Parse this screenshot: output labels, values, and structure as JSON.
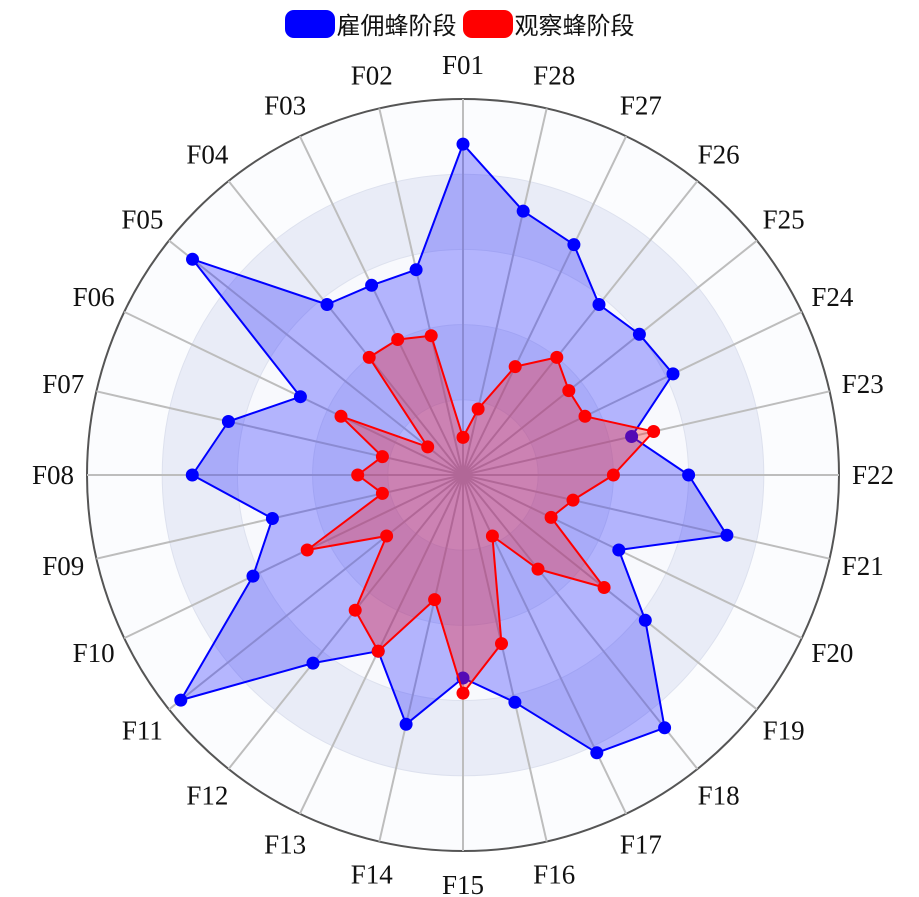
{
  "chart_data": {
    "type": "radar",
    "title": "",
    "legend": {
      "position": "top-center"
    },
    "categories": [
      "F01",
      "F28",
      "F27",
      "F26",
      "F25",
      "F24",
      "F23",
      "F22",
      "F21",
      "F20",
      "F19",
      "F18",
      "F17",
      "F16",
      "F15",
      "F14",
      "F13",
      "F12",
      "F11",
      "F10",
      "F09",
      "F08",
      "F07",
      "F06",
      "F05",
      "F04",
      "F03",
      "F02"
    ],
    "category_order": "clockwise from top",
    "rlim": [
      0,
      5
    ],
    "grid_rings": [
      1,
      2,
      3,
      4,
      5
    ],
    "grid": true,
    "series": [
      {
        "name": "雇佣蜂阶段",
        "color": "#0000ff",
        "fill": "rgba(40,40,255,0.33)",
        "values": {
          "F01": 4.4,
          "F28": 3.6,
          "F27": 3.4,
          "F26": 2.9,
          "F25": 3.0,
          "F24": 3.1,
          "F23": 2.3,
          "F22": 3.0,
          "F21": 3.6,
          "F20": 2.3,
          "F19": 3.1,
          "F18": 4.3,
          "F17": 4.1,
          "F16": 3.1,
          "F15": 2.7,
          "F14": 3.4,
          "F13": 2.6,
          "F12": 3.2,
          "F11": 4.8,
          "F10": 3.1,
          "F09": 2.6,
          "F08": 3.6,
          "F07": 3.2,
          "F06": 2.4,
          "F05": 4.6,
          "F04": 2.9,
          "F03": 2.8,
          "F02": 2.8
        }
      },
      {
        "name": "观察蜂阶段",
        "color": "#ff0000",
        "fill": "rgba(255,30,30,0.33)",
        "values": {
          "F01": 0.5,
          "F28": 0.9,
          "F27": 1.6,
          "F26": 2.0,
          "F25": 1.8,
          "F24": 1.8,
          "F23": 2.6,
          "F22": 2.0,
          "F21": 1.5,
          "F20": 1.3,
          "F19": 2.4,
          "F18": 1.6,
          "F17": 0.9,
          "F16": 2.3,
          "F15": 2.9,
          "F14": 1.7,
          "F13": 2.6,
          "F12": 2.3,
          "F11": 1.3,
          "F10": 2.3,
          "F09": 1.1,
          "F08": 1.4,
          "F07": 1.1,
          "F06": 1.8,
          "F05": 0.6,
          "F04": 2.0,
          "F03": 2.0,
          "F02": 1.9
        }
      }
    ]
  }
}
